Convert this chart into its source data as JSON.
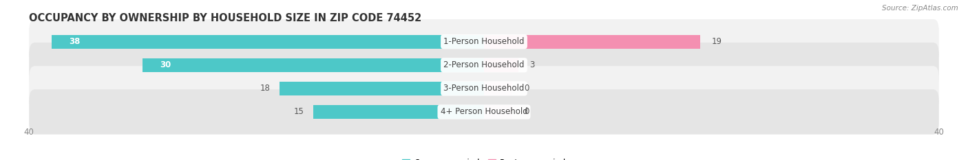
{
  "title": "OCCUPANCY BY OWNERSHIP BY HOUSEHOLD SIZE IN ZIP CODE 74452",
  "source": "Source: ZipAtlas.com",
  "categories": [
    "1-Person Household",
    "2-Person Household",
    "3-Person Household",
    "4+ Person Household"
  ],
  "owner_values": [
    38,
    30,
    18,
    15
  ],
  "renter_values": [
    19,
    3,
    0,
    0
  ],
  "owner_color": "#4DC8C8",
  "renter_color": "#F48FB1",
  "row_bg_light": "#F2F2F2",
  "row_bg_dark": "#E5E5E5",
  "xlim_min": -40,
  "xlim_max": 40,
  "title_fontsize": 10.5,
  "source_fontsize": 7.5,
  "label_fontsize": 8.5,
  "value_fontsize": 8.5,
  "tick_fontsize": 8.5,
  "legend_fontsize": 8.5
}
